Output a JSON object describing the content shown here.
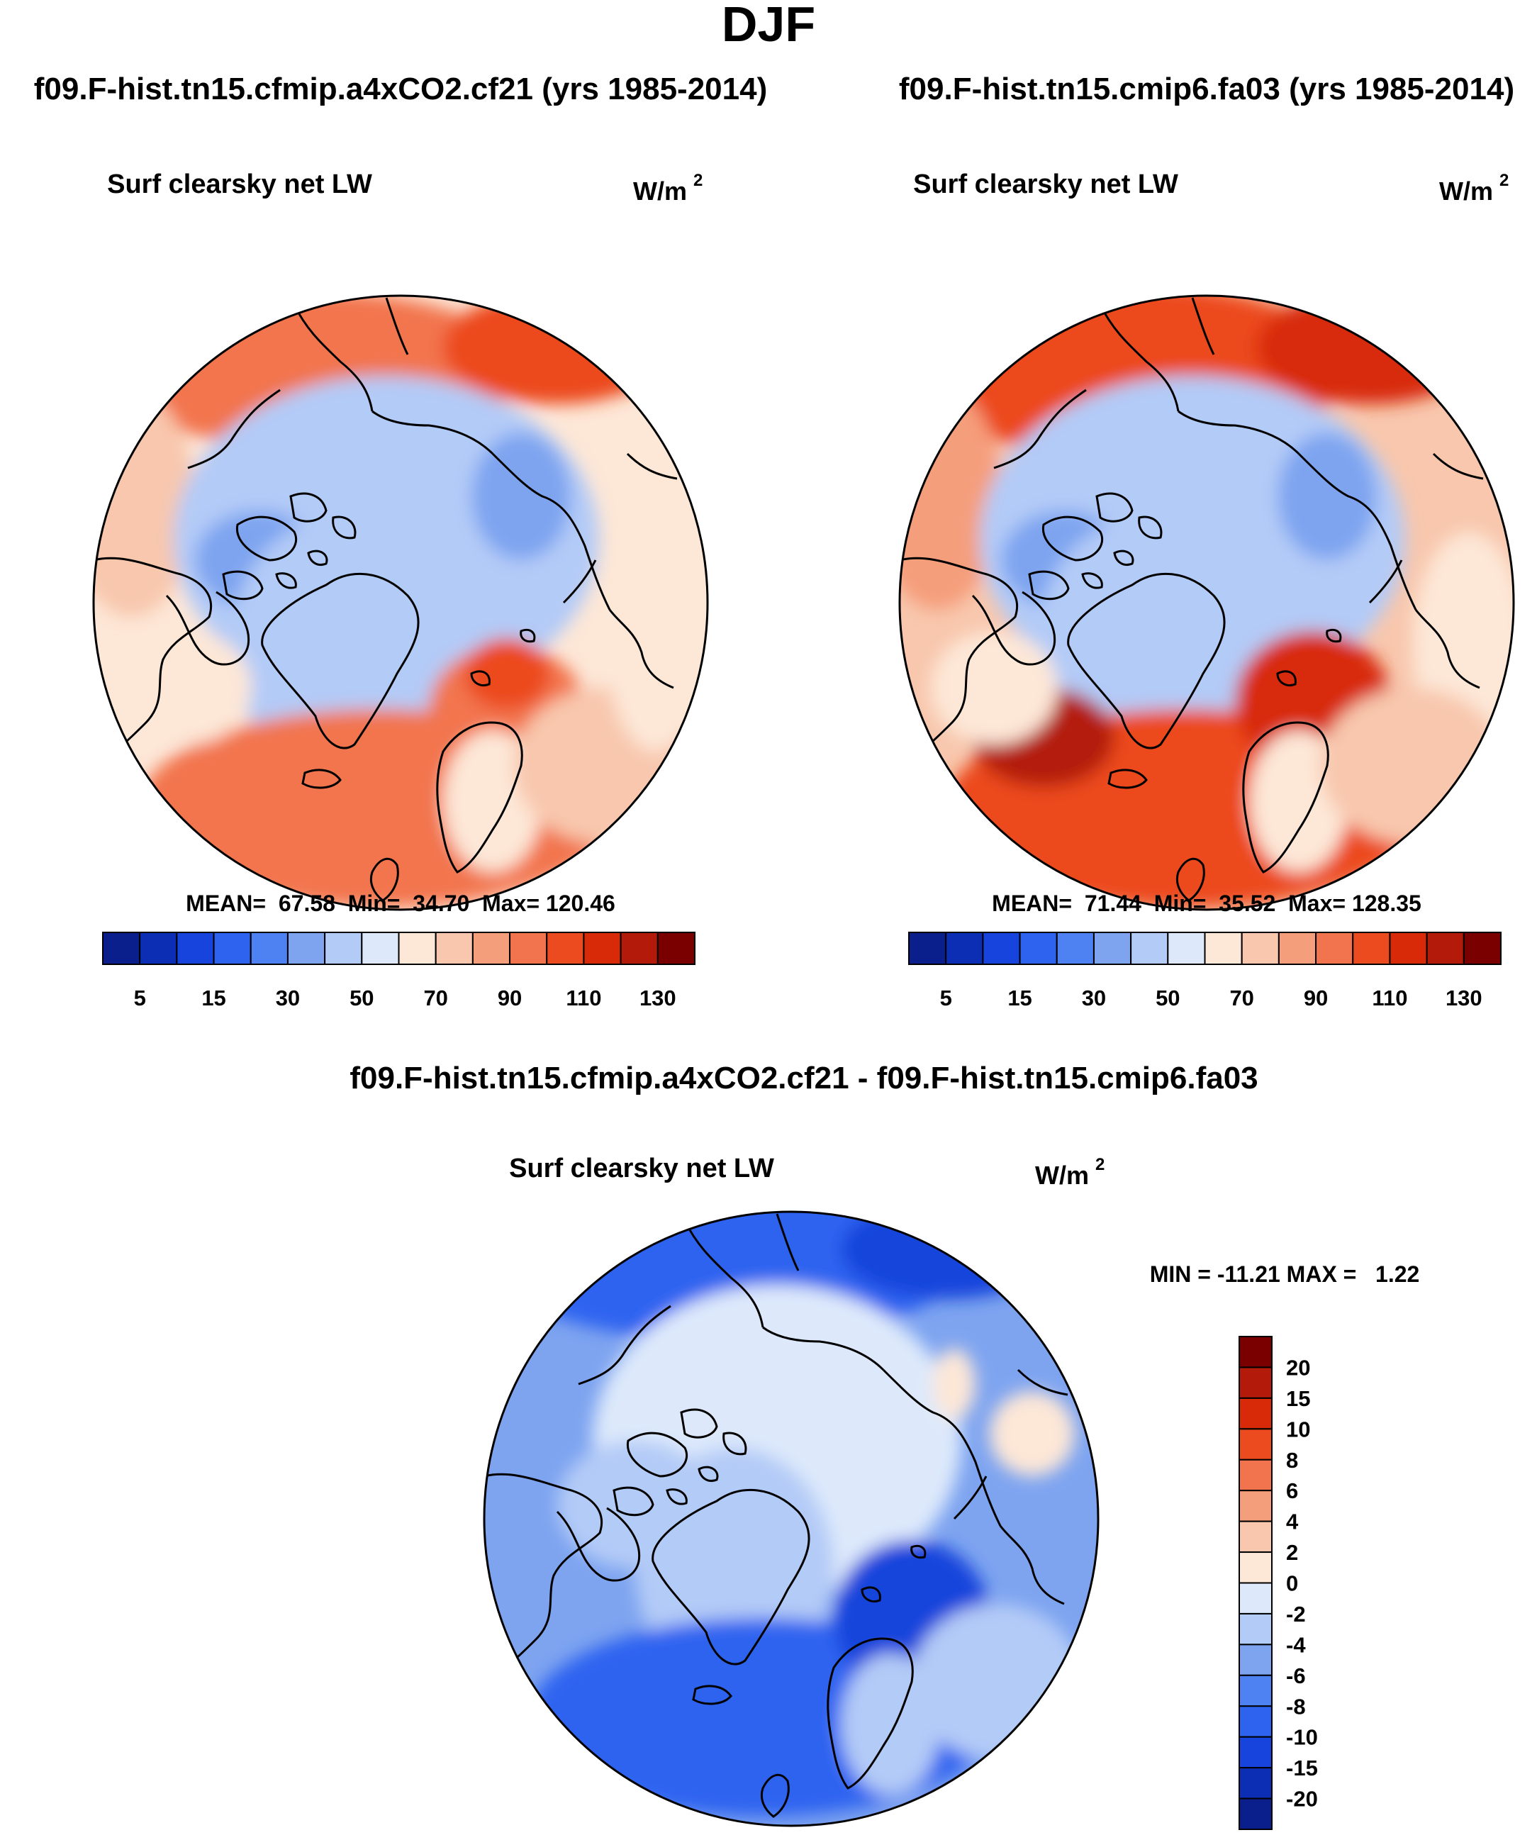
{
  "title": "DJF",
  "colors": {
    "abs_palette": [
      "#0a1e8c",
      "#0b2eb4",
      "#1644dc",
      "#2e63f0",
      "#4e81f2",
      "#7ea4f0",
      "#b3cbf7",
      "#dde9fb",
      "#fde7d7",
      "#f8c7ad",
      "#f59e7b",
      "#f2744e",
      "#ec4a1f",
      "#d82a09",
      "#b41a0a",
      "#7a0000"
    ],
    "diff_palette": [
      "#0a1e8c",
      "#0b2eb4",
      "#1644dc",
      "#2e63f0",
      "#4e81f2",
      "#7ea4f0",
      "#b3cbf7",
      "#dde9fb",
      "#fde7d7",
      "#f8c7ad",
      "#f59e7b",
      "#f2744e",
      "#ec4a1f",
      "#d82a09",
      "#b41a0a",
      "#7a0000"
    ]
  },
  "panels": {
    "left": {
      "case_title": "f09.F-hist.tn15.cfmip.a4xCO2.cf21 (yrs 1985-2014)",
      "variable": "Surf clearsky net LW",
      "units_base": "W/m",
      "units_exp": "2",
      "stats": "MEAN=  67.58  Min=  34.70  Max= 120.46"
    },
    "right": {
      "case_title": "f09.F-hist.tn15.cmip6.fa03 (yrs 1985-2014)",
      "variable": "Surf clearsky net LW",
      "units_base": "W/m",
      "units_exp": "2",
      "stats": "MEAN=  71.44  Min=  35.52  Max= 128.35"
    },
    "diff": {
      "case_title": "f09.F-hist.tn15.cfmip.a4xCO2.cf21 - f09.F-hist.tn15.cmip6.fa03",
      "variable": "Surf clearsky net LW",
      "units_base": "W/m",
      "units_exp": "2",
      "stats": "MIN = -11.21 MAX =   1.22"
    }
  },
  "chart_data": [
    {
      "type": "heatmap",
      "projection": "north polar stereographic",
      "title": "f09.F-hist.tn15.cfmip.a4xCO2.cf21 (yrs 1985-2014)",
      "variable": "Surf clearsky net LW",
      "units": "W/m2",
      "mean": 67.58,
      "min": 34.7,
      "max": 120.46,
      "colorbar_levels": [
        5,
        10,
        15,
        20,
        30,
        40,
        50,
        60,
        70,
        80,
        90,
        100,
        110,
        120,
        130
      ],
      "colorbar_labels": [
        "5",
        "15",
        "30",
        "50",
        "70",
        "90",
        "110",
        "130"
      ]
    },
    {
      "type": "heatmap",
      "projection": "north polar stereographic",
      "title": "f09.F-hist.tn15.cmip6.fa03 (yrs 1985-2014)",
      "variable": "Surf clearsky net LW",
      "units": "W/m2",
      "mean": 71.44,
      "min": 35.52,
      "max": 128.35,
      "colorbar_levels": [
        5,
        10,
        15,
        20,
        30,
        40,
        50,
        60,
        70,
        80,
        90,
        100,
        110,
        120,
        130
      ],
      "colorbar_labels": [
        "5",
        "15",
        "30",
        "50",
        "70",
        "90",
        "110",
        "130"
      ]
    },
    {
      "type": "heatmap",
      "projection": "north polar stereographic",
      "title": "f09.F-hist.tn15.cfmip.a4xCO2.cf21 - f09.F-hist.tn15.cmip6.fa03",
      "variable": "Surf clearsky net LW",
      "units": "W/m2",
      "min": -11.21,
      "max": 1.22,
      "colorbar_levels": [
        -20,
        -15,
        -10,
        -8,
        -6,
        -4,
        -2,
        0,
        2,
        4,
        6,
        8,
        10,
        15,
        20
      ],
      "colorbar_labels": [
        "20",
        "15",
        "10",
        "8",
        "6",
        "4",
        "2",
        "0",
        "-2",
        "-4",
        "-6",
        "-8",
        "-10",
        "-15",
        "-20"
      ]
    }
  ]
}
